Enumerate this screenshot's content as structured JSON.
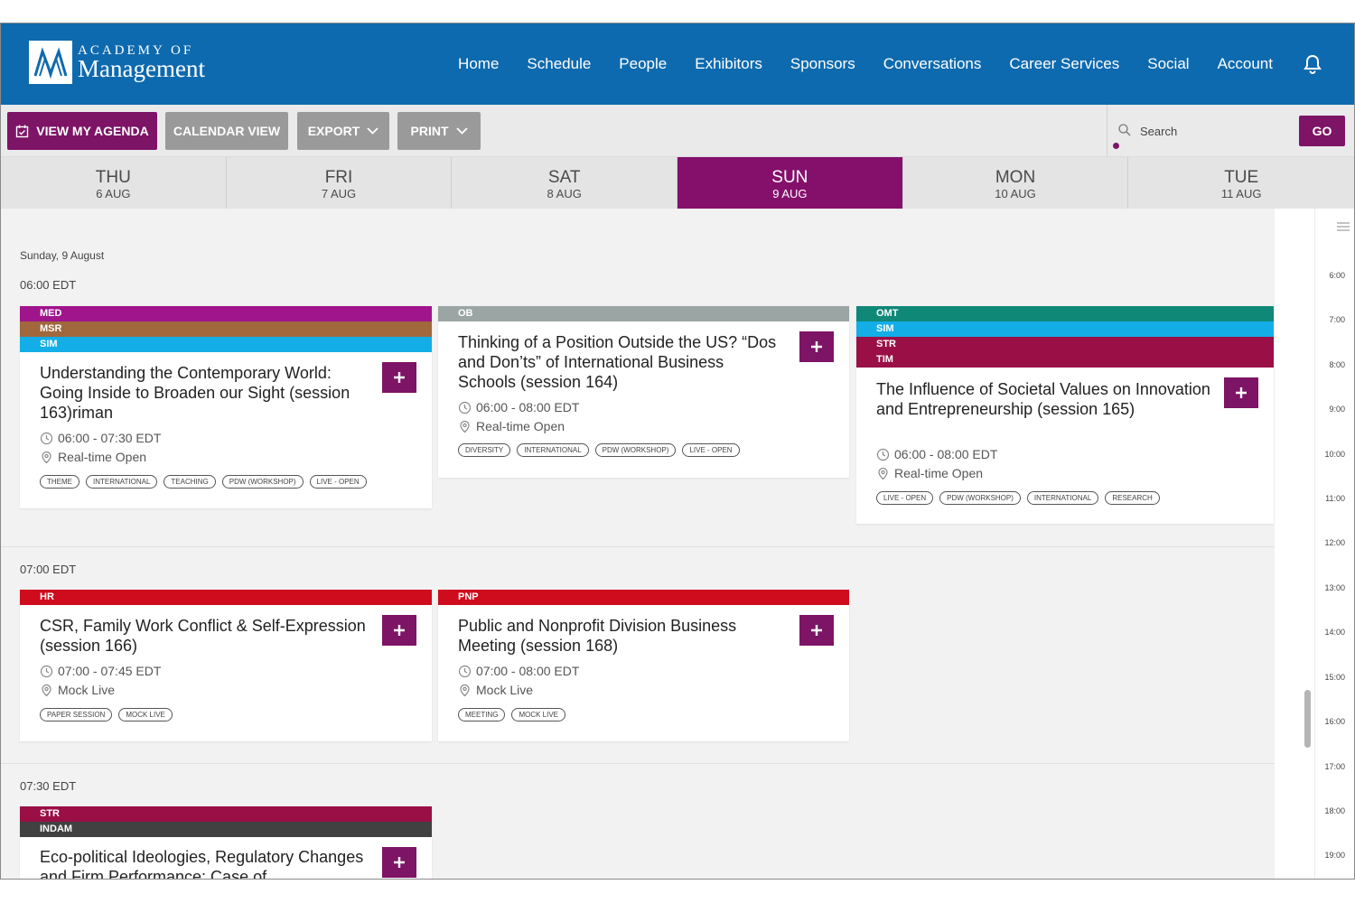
{
  "header": {
    "logo": {
      "line1": "ACADEMY OF",
      "line2": "Management"
    },
    "nav": [
      "Home",
      "Schedule",
      "People",
      "Exhibitors",
      "Sponsors",
      "Conversations",
      "Career Services",
      "Social",
      "Account"
    ]
  },
  "toolbar": {
    "agenda_label": "VIEW MY AGENDA",
    "calendar_label": "CALENDAR VIEW",
    "export_label": "EXPORT",
    "print_label": "PRINT",
    "search_placeholder": "Search",
    "go_label": "GO"
  },
  "days": [
    {
      "name": "THU",
      "date": "6 AUG"
    },
    {
      "name": "FRI",
      "date": "7 AUG"
    },
    {
      "name": "SAT",
      "date": "8 AUG"
    },
    {
      "name": "SUN",
      "date": "9 AUG",
      "active": true
    },
    {
      "name": "MON",
      "date": "10 AUG"
    },
    {
      "name": "TUE",
      "date": "11 AUG"
    }
  ],
  "main": {
    "day_label": "Sunday, 9 August",
    "time_slots": [
      "06:00 EDT",
      "07:00 EDT",
      "07:30 EDT"
    ],
    "sessions": [
      {
        "bands": [
          {
            "code": "MED",
            "color": "#a0148c"
          },
          {
            "code": "MSR",
            "color": "#a0683c"
          },
          {
            "code": "SIM",
            "color": "#13aee8"
          }
        ],
        "title": "Understanding the Contemporary World: Going Inside to Broaden our Sight (session 163)riman",
        "time": "06:00 - 07:30 EDT",
        "location": "Real-time Open",
        "tags": [
          "THEME",
          "INTERNATIONAL",
          "TEACHING",
          "PDW (WORKSHOP)",
          "LIVE - OPEN"
        ]
      },
      {
        "bands": [
          {
            "code": "OB",
            "color": "#9aa5a4"
          }
        ],
        "title": "Thinking of a Position Outside the US? “Dos and Don’ts” of International Business Schools (session 164)",
        "time": "06:00 - 08:00 EDT",
        "location": "Real-time Open",
        "tags": [
          "DIVERSITY",
          "INTERNATIONAL",
          "PDW (WORKSHOP)",
          "LIVE - OPEN"
        ]
      },
      {
        "bands": [
          {
            "code": "OMT",
            "color": "#0f8878"
          },
          {
            "code": "SIM",
            "color": "#13aee8"
          },
          {
            "code": "STR",
            "color": "#9a0f46"
          },
          {
            "code": "TIM",
            "color": "#9a0f46"
          }
        ],
        "title": "The Influence of Societal Values on Innovation and Entrepreneurship (session 165)",
        "time": "06:00 - 08:00 EDT",
        "location": "Real-time Open",
        "tags": [
          "LIVE - OPEN",
          "PDW (WORKSHOP)",
          "INTERNATIONAL",
          "RESEARCH"
        ]
      },
      {
        "bands": [
          {
            "code": "HR",
            "color": "#cf0c1e"
          }
        ],
        "title": "CSR, Family Work Conflict & Self-Expression (session 166)",
        "time": "07:00 - 07:45 EDT",
        "location": "Mock Live",
        "tags": [
          "PAPER SESSION",
          "MOCK LIVE"
        ]
      },
      {
        "bands": [
          {
            "code": "PNP",
            "color": "#cf0c1e"
          }
        ],
        "title": "Public and Nonprofit Division Business Meeting (session 168)",
        "time": "07:00 - 08:00 EDT",
        "location": "Mock Live",
        "tags": [
          "MEETING",
          "MOCK LIVE"
        ]
      },
      {
        "bands": [
          {
            "code": "STR",
            "color": "#9a0f46"
          },
          {
            "code": "INDAM",
            "color": "#414141"
          }
        ],
        "title": "Eco-political Ideologies, Regulatory Changes and Firm Performance: Case of",
        "time": "",
        "location": "",
        "tags": []
      }
    ]
  },
  "timeline": {
    "hours": [
      "6:00",
      "7:00",
      "8:00",
      "9:00",
      "10:00",
      "11:00",
      "12:00",
      "13:00",
      "14:00",
      "15:00",
      "16:00",
      "17:00",
      "18:00",
      "19:00"
    ]
  },
  "colors": {
    "brand_blue": "#0e6aae",
    "accent_purple": "#7d1466",
    "active_day": "#85106c"
  }
}
